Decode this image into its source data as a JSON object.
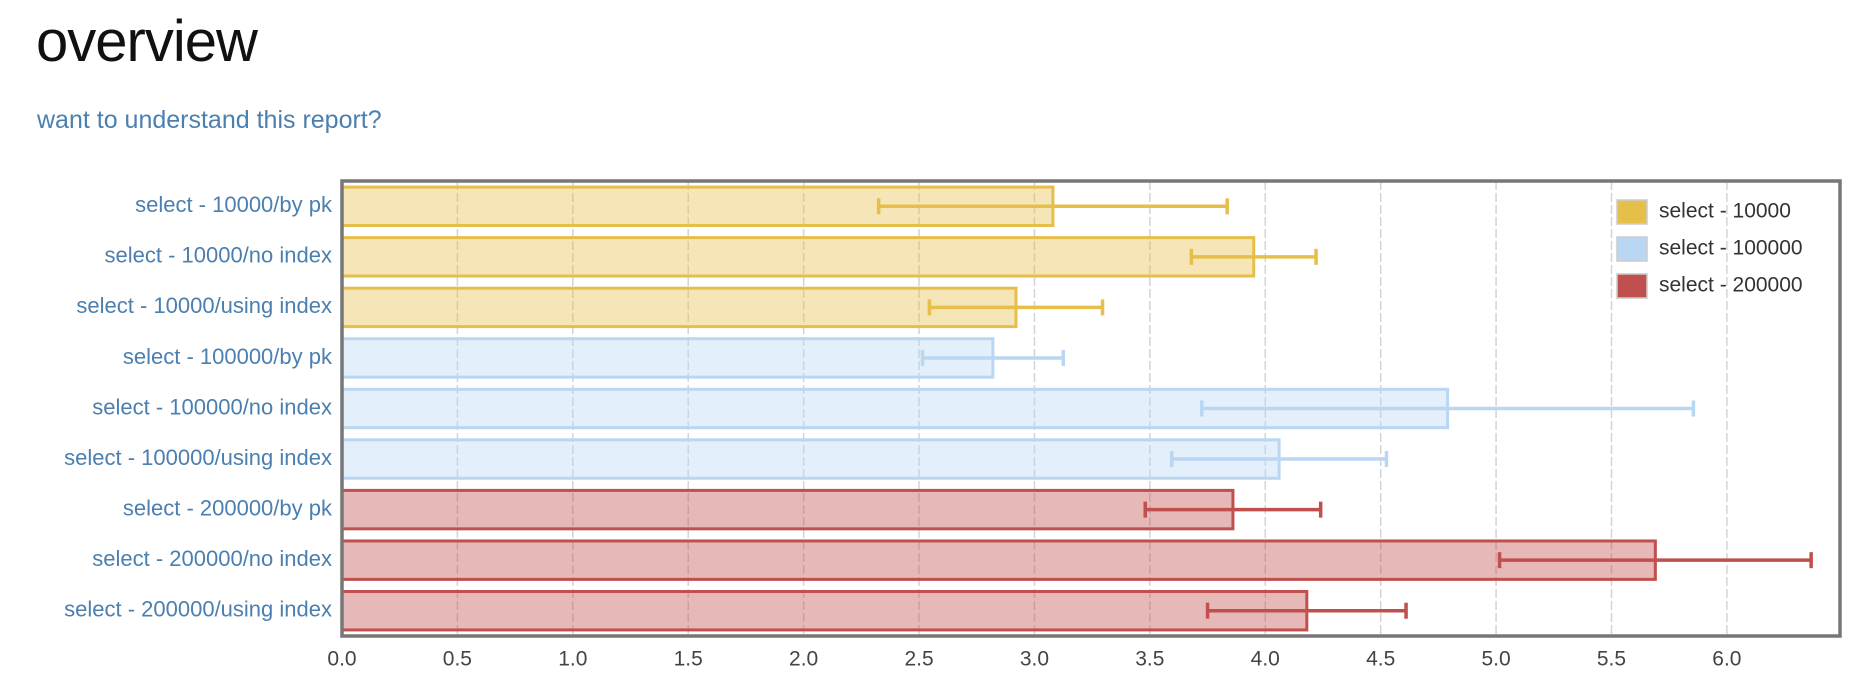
{
  "title": "overview",
  "link": "want to understand this report?",
  "chart_data": {
    "type": "bar",
    "orientation": "horizontal",
    "categories": [
      "select - 10000/by pk",
      "select - 10000/no index",
      "select - 10000/using index",
      "select - 100000/by pk",
      "select - 100000/no index",
      "select - 100000/using index",
      "select - 200000/by pk",
      "select - 200000/no index",
      "select - 200000/using index"
    ],
    "series": [
      {
        "name": "select - 10000",
        "color": "#e6be4a",
        "values": [
          3.08,
          3.95,
          2.92,
          null,
          null,
          null,
          null,
          null,
          null
        ],
        "errors": [
          0.755,
          0.27,
          0.375,
          null,
          null,
          null,
          null,
          null,
          null
        ]
      },
      {
        "name": "select - 100000",
        "color": "#b9d6f2",
        "values": [
          null,
          null,
          null,
          2.82,
          4.79,
          4.06,
          null,
          null,
          null
        ],
        "errors": [
          null,
          null,
          null,
          0.305,
          1.065,
          0.465,
          null,
          null,
          null
        ]
      },
      {
        "name": "select - 200000",
        "color": "#c0504d",
        "values": [
          null,
          null,
          null,
          null,
          null,
          null,
          3.86,
          5.69,
          4.18
        ],
        "errors": [
          null,
          null,
          null,
          null,
          null,
          null,
          0.38,
          0.675,
          0.43
        ]
      }
    ],
    "xlim": [
      0,
      6.49
    ],
    "xticks": [
      {
        "value": 0,
        "label": "0.0"
      },
      0.5,
      {
        "value": 1,
        "label": "1.0"
      },
      1.5,
      {
        "value": 2,
        "label": "2.0"
      },
      2.5,
      {
        "value": 3,
        "label": "3.0"
      },
      3.5,
      {
        "value": 4,
        "label": "4.0"
      },
      4.5,
      {
        "value": 5,
        "label": "5.0"
      },
      5.5,
      {
        "value": 6,
        "label": "6.0"
      }
    ],
    "grid": true,
    "legend": "top-right"
  }
}
